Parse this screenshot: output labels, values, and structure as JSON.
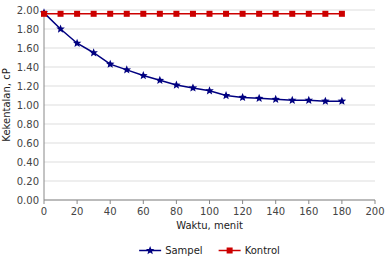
{
  "chart_data": {
    "type": "line",
    "x_label": "Waktu, menit",
    "y_label": "Kekentalan, cP",
    "x": [
      0,
      10,
      20,
      30,
      40,
      50,
      60,
      70,
      80,
      90,
      100,
      110,
      120,
      130,
      140,
      150,
      160,
      170,
      180
    ],
    "series": [
      {
        "name": "Sampel",
        "color": "#000080",
        "marker": "star",
        "values": [
          1.97,
          1.8,
          1.65,
          1.55,
          1.43,
          1.37,
          1.31,
          1.26,
          1.21,
          1.18,
          1.15,
          1.1,
          1.08,
          1.07,
          1.06,
          1.05,
          1.05,
          1.04,
          1.04
        ]
      },
      {
        "name": "Kontrol",
        "color": "#cc0000",
        "marker": "square",
        "values": [
          1.96,
          1.96,
          1.96,
          1.96,
          1.96,
          1.96,
          1.96,
          1.96,
          1.96,
          1.96,
          1.96,
          1.96,
          1.96,
          1.96,
          1.96,
          1.96,
          1.96,
          1.96,
          1.96
        ]
      }
    ],
    "xlim": [
      0,
      200
    ],
    "ylim": [
      0.0,
      2.0
    ],
    "xticks": [
      0,
      20,
      40,
      60,
      80,
      100,
      120,
      140,
      160,
      180,
      200
    ],
    "yticks": [
      {
        "value": 0.0,
        "label": "0.00"
      },
      {
        "value": 0.2,
        "label": "0.20"
      },
      {
        "value": 0.4,
        "label": "0.40"
      },
      {
        "value": 0.6,
        "label": "0.60"
      },
      {
        "value": 0.8,
        "label": "0.80"
      },
      {
        "value": 1.0,
        "label": "1.00"
      },
      {
        "value": 1.2,
        "label": "1.20"
      },
      {
        "value": 1.4,
        "label": "1.40"
      },
      {
        "value": 1.6,
        "label": "1.60"
      },
      {
        "value": 1.8,
        "label": "1.80"
      },
      {
        "value": 2.0,
        "label": "2.00"
      }
    ],
    "grid": "y",
    "legend": "bottom"
  }
}
